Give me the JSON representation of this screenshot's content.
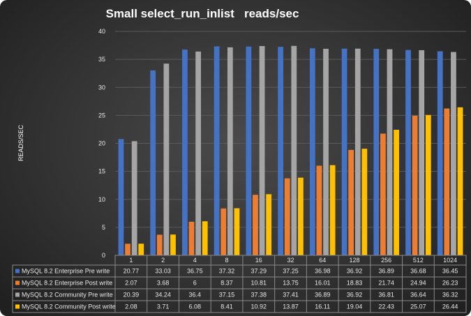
{
  "chart_data": {
    "type": "bar",
    "title": "Small select_run_inlist   reads/sec",
    "ylabel": "READS/SEC",
    "xlabel": "",
    "ylim": [
      0,
      40
    ],
    "yticks": [
      0,
      5,
      10,
      15,
      20,
      25,
      30,
      35,
      40
    ],
    "grid": true,
    "legend": "data-table",
    "categories": [
      "1",
      "2",
      "4",
      "8",
      "16",
      "32",
      "64",
      "128",
      "256",
      "512",
      "1024"
    ],
    "series": [
      {
        "name": "MySQL 8.2 Enterprise Pre write",
        "color": "#4472c4",
        "values": [
          20.77,
          33.03,
          36.75,
          37.32,
          37.29,
          37.25,
          36.98,
          36.92,
          36.89,
          36.68,
          36.45
        ]
      },
      {
        "name": "MySQL 8.2 Enterprise Post write",
        "color": "#ed7d31",
        "values": [
          2.07,
          3.68,
          6,
          8.37,
          10.81,
          13.75,
          16.01,
          18.83,
          21.74,
          24.94,
          26.23
        ]
      },
      {
        "name": "MySQL 8.2 Community Pre write",
        "color": "#a5a5a5",
        "values": [
          20.39,
          34.24,
          36.4,
          37.15,
          37.38,
          37.41,
          36.89,
          36.92,
          36.81,
          36.64,
          36.32
        ]
      },
      {
        "name": "MySQL 8.2 Community Post write",
        "color": "#ffc000",
        "values": [
          2.08,
          3.71,
          6.08,
          8.41,
          10.92,
          13.87,
          16.11,
          19.04,
          22.43,
          25.07,
          26.44
        ]
      }
    ]
  }
}
